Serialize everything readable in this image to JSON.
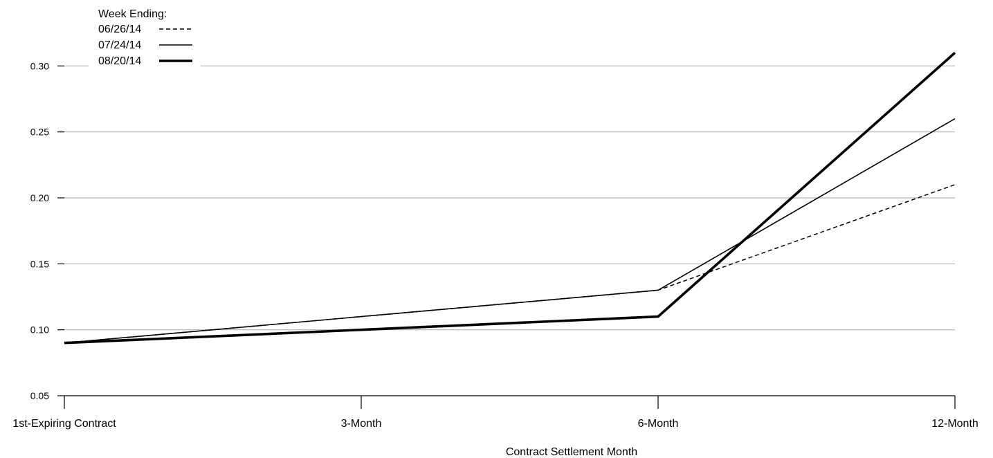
{
  "chart_data": {
    "type": "line",
    "title": "",
    "xlabel": "Contract Settlement Month",
    "ylabel": "",
    "categories": [
      "1st-Expiring Contract",
      "3-Month",
      "6-Month",
      "12-Month"
    ],
    "ylim": [
      0.05,
      0.35
    ],
    "yticks": [
      "0.05",
      "0.10",
      "0.15",
      "0.20",
      "0.25",
      "0.30"
    ],
    "grid": true,
    "legend": {
      "title": "Week Ending:",
      "position": "top-left"
    },
    "series": [
      {
        "name": "06/26/14",
        "values": [
          0.09,
          0.11,
          0.13,
          0.21
        ],
        "style": "dashed",
        "color": "#000000"
      },
      {
        "name": "07/24/14",
        "values": [
          0.09,
          0.11,
          0.13,
          0.26
        ],
        "style": "thin",
        "color": "#000000"
      },
      {
        "name": "08/20/14",
        "values": [
          0.09,
          0.1,
          0.11,
          0.31
        ],
        "style": "thick",
        "color": "#000000"
      }
    ]
  }
}
